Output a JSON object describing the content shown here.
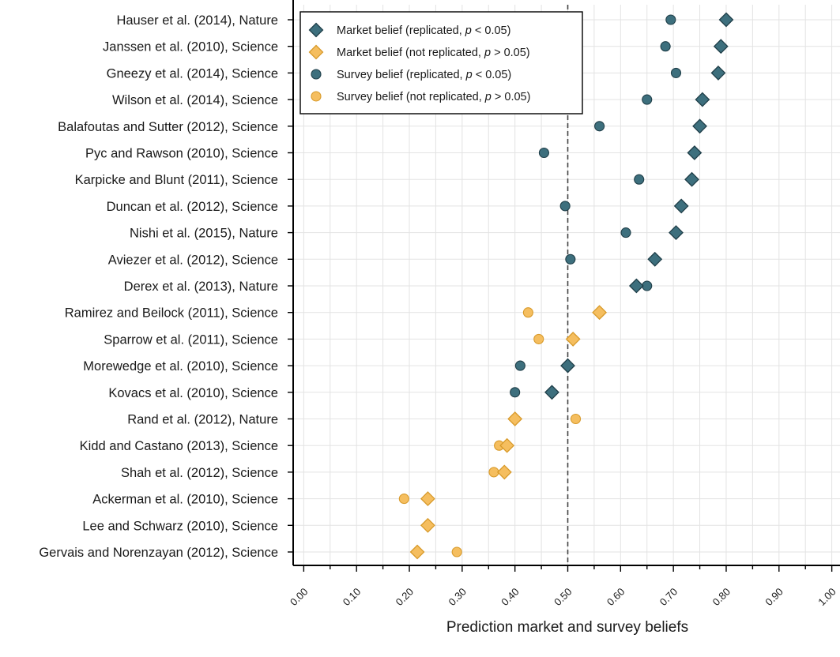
{
  "chart_data": {
    "type": "scatter",
    "xlabel": "Prediction market and survey beliefs",
    "xlim": [
      -0.02,
      1.02
    ],
    "x_ticks": [
      "0.00",
      "0.10",
      "0.20",
      "0.30",
      "0.40",
      "0.50",
      "0.60",
      "0.70",
      "0.80",
      "0.90",
      "1.00"
    ],
    "reference_line": 0.5,
    "grid": true,
    "legend_position": "top-left",
    "colors": {
      "replicated": "#3d6f7d",
      "replicated_edge": "#1f3e48",
      "not_replicated": "#f5be5f",
      "not_replicated_edge": "#d89a2a"
    },
    "studies": [
      "Hauser et al. (2014), Nature",
      "Janssen et al. (2010), Science",
      "Gneezy et al. (2014), Science",
      "Wilson et al. (2014), Science",
      "Balafoutas and Sutter (2012), Science",
      "Pyc and Rawson (2010), Science",
      "Karpicke and Blunt (2011), Science",
      "Duncan et al. (2012), Science",
      "Nishi et al. (2015), Nature",
      "Aviezer et al. (2012), Science",
      "Derex et al. (2013), Nature",
      "Ramirez and Beilock (2011), Science",
      "Sparrow et al. (2011), Science",
      "Morewedge et al. (2010), Science",
      "Kovacs et al. (2010), Science",
      "Rand et al. (2012), Nature",
      "Kidd and Castano (2013), Science",
      "Shah et al. (2012), Science",
      "Ackerman et al. (2010), Science",
      "Lee and Schwarz (2010), Science",
      "Gervais and Norenzayan (2012), Science"
    ],
    "replicated": [
      true,
      true,
      true,
      true,
      true,
      true,
      true,
      true,
      true,
      true,
      true,
      false,
      false,
      true,
      true,
      false,
      false,
      false,
      false,
      false,
      false
    ],
    "series": [
      {
        "name": "Market belief (replicated, p < 0.05)",
        "marker": "diamond",
        "group": "replicated",
        "values": [
          0.8,
          0.79,
          0.785,
          0.755,
          0.75,
          0.74,
          0.735,
          0.715,
          0.705,
          0.665,
          0.63,
          null,
          null,
          0.5,
          0.47,
          null,
          null,
          null,
          null,
          null,
          null
        ]
      },
      {
        "name": "Market belief (not replicated, p > 0.05)",
        "marker": "diamond",
        "group": "not_replicated",
        "values": [
          null,
          null,
          null,
          null,
          null,
          null,
          null,
          null,
          null,
          null,
          null,
          0.56,
          0.51,
          null,
          null,
          0.4,
          0.385,
          0.38,
          0.235,
          0.235,
          0.215
        ]
      },
      {
        "name": "Survey belief (replicated, p < 0.05)",
        "marker": "circle",
        "group": "replicated",
        "values": [
          0.695,
          0.685,
          0.705,
          0.65,
          0.56,
          0.455,
          0.635,
          0.495,
          0.61,
          0.505,
          0.65,
          null,
          null,
          0.41,
          0.4,
          null,
          null,
          null,
          null,
          null,
          null
        ]
      },
      {
        "name": "Survey belief (not replicated, p > 0.05)",
        "marker": "circle",
        "group": "not_replicated",
        "values": [
          null,
          null,
          null,
          null,
          null,
          null,
          null,
          null,
          null,
          null,
          null,
          0.425,
          0.445,
          null,
          null,
          0.515,
          0.37,
          0.36,
          0.19,
          null,
          0.29
        ]
      }
    ],
    "legend": [
      {
        "prefix": "Market belief (replicated, ",
        "italic": "p",
        "suffix": " < 0.05)"
      },
      {
        "prefix": "Market belief (not replicated, ",
        "italic": "p",
        "suffix": " > 0.05)"
      },
      {
        "prefix": "Survey belief (replicated, ",
        "italic": "p",
        "suffix": " < 0.05)"
      },
      {
        "prefix": "Survey belief (not replicated, ",
        "italic": "p",
        "suffix": " > 0.05)"
      }
    ]
  }
}
